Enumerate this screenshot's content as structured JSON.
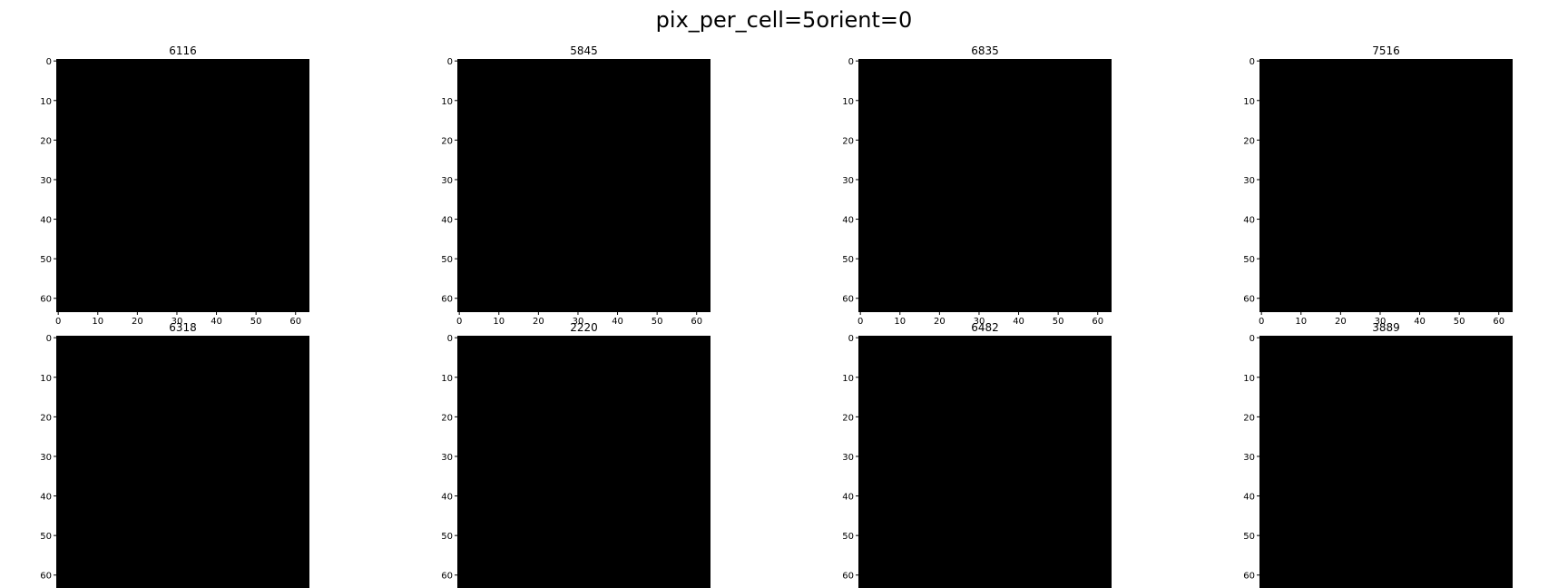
{
  "suptitle": "pix_per_cell=5orient=0",
  "chart_data": [
    {
      "type": "heatmap",
      "title": "6116",
      "xticks": [
        0,
        10,
        20,
        30,
        40,
        50,
        60
      ],
      "yticks": [
        0,
        10,
        20,
        30,
        40,
        50,
        60
      ],
      "xlim": [
        -0.5,
        63.5
      ],
      "ylim": [
        63.5,
        -0.5
      ],
      "colormap": "gray",
      "values": "all zero (black)"
    },
    {
      "type": "heatmap",
      "title": "5845",
      "xticks": [
        0,
        10,
        20,
        30,
        40,
        50,
        60
      ],
      "yticks": [
        0,
        10,
        20,
        30,
        40,
        50,
        60
      ],
      "xlim": [
        -0.5,
        63.5
      ],
      "ylim": [
        63.5,
        -0.5
      ],
      "colormap": "gray",
      "values": "all zero (black)"
    },
    {
      "type": "heatmap",
      "title": "6835",
      "xticks": [
        0,
        10,
        20,
        30,
        40,
        50,
        60
      ],
      "yticks": [
        0,
        10,
        20,
        30,
        40,
        50,
        60
      ],
      "xlim": [
        -0.5,
        63.5
      ],
      "ylim": [
        63.5,
        -0.5
      ],
      "colormap": "gray",
      "values": "all zero (black)"
    },
    {
      "type": "heatmap",
      "title": "7516",
      "xticks": [
        0,
        10,
        20,
        30,
        40,
        50,
        60
      ],
      "yticks": [
        0,
        10,
        20,
        30,
        40,
        50,
        60
      ],
      "xlim": [
        -0.5,
        63.5
      ],
      "ylim": [
        63.5,
        -0.5
      ],
      "colormap": "gray",
      "values": "all zero (black)"
    },
    {
      "type": "heatmap",
      "title": "6318",
      "xticks": [],
      "yticks": [
        0,
        10,
        20,
        30,
        40,
        50,
        60
      ],
      "xlim": [
        -0.5,
        63.5
      ],
      "ylim": [
        63.5,
        -0.5
      ],
      "colormap": "gray",
      "values": "all zero (black)"
    },
    {
      "type": "heatmap",
      "title": "2220",
      "xticks": [],
      "yticks": [
        0,
        10,
        20,
        30,
        40,
        50,
        60
      ],
      "xlim": [
        -0.5,
        63.5
      ],
      "ylim": [
        63.5,
        -0.5
      ],
      "colormap": "gray",
      "values": "all zero (black)"
    },
    {
      "type": "heatmap",
      "title": "6482",
      "xticks": [],
      "yticks": [
        0,
        10,
        20,
        30,
        40,
        50,
        60
      ],
      "xlim": [
        -0.5,
        63.5
      ],
      "ylim": [
        63.5,
        -0.5
      ],
      "colormap": "gray",
      "values": "all zero (black)"
    },
    {
      "type": "heatmap",
      "title": "3889",
      "xticks": [],
      "yticks": [
        0,
        10,
        20,
        30,
        40,
        50,
        60
      ],
      "xlim": [
        -0.5,
        63.5
      ],
      "ylim": [
        63.5,
        -0.5
      ],
      "colormap": "gray",
      "values": "all zero (black)"
    }
  ],
  "colors": {
    "image": "#000000",
    "background": "#ffffff",
    "text": "#000000"
  }
}
